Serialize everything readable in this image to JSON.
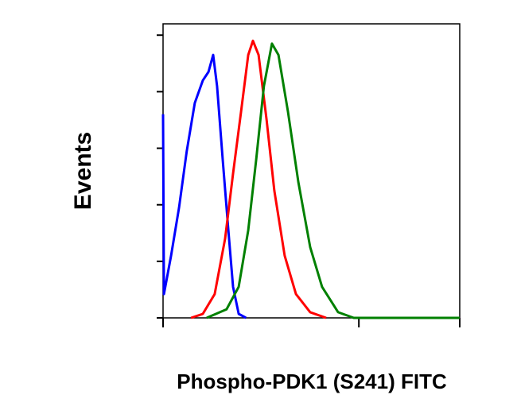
{
  "chart_data": {
    "type": "line",
    "x_label": "Phospho-PDK1 (S241) FITC",
    "y_label": "Events",
    "xlim": [
      0,
      100
    ],
    "xticks": [
      0,
      66,
      100
    ],
    "ylim": [
      0,
      104
    ],
    "yticks": [
      0,
      20,
      40,
      60,
      80,
      100
    ],
    "series": [
      {
        "color": "#0000ff",
        "x": [
          0,
          0.3,
          2.7,
          5.4,
          8,
          10.7,
          13.4,
          15.3,
          16.9,
          18.2,
          20.1,
          22,
          23.6,
          25.5,
          28
        ],
        "values": [
          72,
          8.4,
          22,
          39,
          59,
          76,
          84,
          87,
          93,
          82,
          56,
          31,
          11,
          1.4,
          0
        ]
      },
      {
        "color": "#ff0000",
        "x": [
          9.4,
          13.4,
          17.4,
          20.9,
          23.6,
          26.3,
          28.7,
          30.3,
          32.2,
          34.9,
          37.5,
          41,
          44.8,
          49.6,
          55
        ],
        "values": [
          0,
          1.4,
          8.4,
          28,
          51,
          73,
          93,
          98,
          93,
          70,
          45,
          22,
          8.4,
          2,
          0
        ]
      },
      {
        "color": "#008000",
        "x": [
          14.7,
          21.4,
          25.5,
          28.7,
          31.4,
          34,
          36.7,
          38.9,
          42.1,
          45.6,
          49.6,
          53.6,
          59,
          64.3,
          100
        ],
        "values": [
          0,
          3,
          11,
          31,
          56,
          82,
          97,
          93,
          73,
          48,
          25,
          11,
          2,
          0,
          0
        ]
      }
    ]
  }
}
